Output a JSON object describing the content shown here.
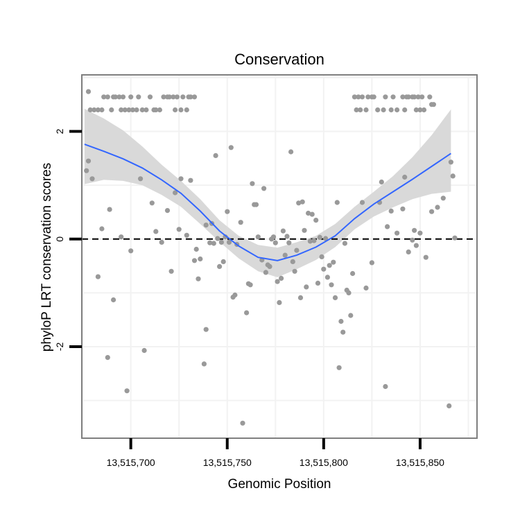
{
  "chart_data": {
    "type": "scatter",
    "title": "Conservation",
    "xlabel": "Genomic Position",
    "ylabel": "phyloP LRT conservation scores",
    "xlim": [
      13515674.6,
      13515879.5
    ],
    "ylim": [
      -3.7,
      3.05
    ],
    "x_ticks": [
      13515700,
      13515750,
      13515800,
      13515850
    ],
    "x_tick_labels": [
      "13,515,700",
      "13,515,750",
      "13,515,800",
      "13,515,850"
    ],
    "y_ticks": [
      -2,
      0,
      2
    ],
    "y_tick_labels": [
      "-2",
      "0",
      "2"
    ],
    "reference_line": {
      "y": 0,
      "style": "dashed"
    },
    "grid": true,
    "legend": "none",
    "colors": {
      "points": "#999999",
      "smooth_line": "#3366ff",
      "ribbon": "#d9d9d9",
      "panel_border": "#7f7f7f",
      "grid": "#f2f2f2",
      "reference_line": "#000000"
    },
    "points": [
      {
        "x": 13515678,
        "y": 2.74
      },
      {
        "x": 13515679,
        "y": 2.4
      },
      {
        "x": 13515681,
        "y": 2.4
      },
      {
        "x": 13515683,
        "y": 2.4
      },
      {
        "x": 13515685,
        "y": 2.4
      },
      {
        "x": 13515686,
        "y": 2.64
      },
      {
        "x": 13515688,
        "y": 2.64
      },
      {
        "x": 13515690,
        "y": 2.4
      },
      {
        "x": 13515691,
        "y": 2.64
      },
      {
        "x": 13515692,
        "y": 2.64
      },
      {
        "x": 13515694,
        "y": 2.64
      },
      {
        "x": 13515695,
        "y": 2.4
      },
      {
        "x": 13515696,
        "y": 2.64
      },
      {
        "x": 13515697,
        "y": 2.4
      },
      {
        "x": 13515699,
        "y": 2.4
      },
      {
        "x": 13515700,
        "y": 2.64
      },
      {
        "x": 13515701,
        "y": 2.4
      },
      {
        "x": 13515703,
        "y": 2.4
      },
      {
        "x": 13515704,
        "y": 2.64
      },
      {
        "x": 13515706,
        "y": 2.4
      },
      {
        "x": 13515708,
        "y": 2.4
      },
      {
        "x": 13515710,
        "y": 2.64
      },
      {
        "x": 13515712,
        "y": 2.4
      },
      {
        "x": 13515713,
        "y": 2.4
      },
      {
        "x": 13515715,
        "y": 2.4
      },
      {
        "x": 13515717,
        "y": 2.64
      },
      {
        "x": 13515719,
        "y": 2.64
      },
      {
        "x": 13515720,
        "y": 2.64
      },
      {
        "x": 13515722,
        "y": 2.64
      },
      {
        "x": 13515723,
        "y": 2.4
      },
      {
        "x": 13515724,
        "y": 2.64
      },
      {
        "x": 13515726,
        "y": 2.4
      },
      {
        "x": 13515727,
        "y": 2.64
      },
      {
        "x": 13515729,
        "y": 2.4
      },
      {
        "x": 13515730,
        "y": 2.64
      },
      {
        "x": 13515731,
        "y": 2.64
      },
      {
        "x": 13515733,
        "y": 2.64
      },
      {
        "x": 13515816,
        "y": 2.64
      },
      {
        "x": 13515817,
        "y": 2.4
      },
      {
        "x": 13515818,
        "y": 2.64
      },
      {
        "x": 13515819,
        "y": 2.4
      },
      {
        "x": 13515820,
        "y": 2.64
      },
      {
        "x": 13515822,
        "y": 2.4
      },
      {
        "x": 13515823,
        "y": 2.64
      },
      {
        "x": 13515825,
        "y": 2.64
      },
      {
        "x": 13515826,
        "y": 2.64
      },
      {
        "x": 13515828,
        "y": 2.4
      },
      {
        "x": 13515831,
        "y": 2.4
      },
      {
        "x": 13515832,
        "y": 2.64
      },
      {
        "x": 13515835,
        "y": 2.4
      },
      {
        "x": 13515836,
        "y": 2.64
      },
      {
        "x": 13515838,
        "y": 2.4
      },
      {
        "x": 13515841,
        "y": 2.64
      },
      {
        "x": 13515842,
        "y": 2.4
      },
      {
        "x": 13515843,
        "y": 2.64
      },
      {
        "x": 13515844,
        "y": 2.64
      },
      {
        "x": 13515846,
        "y": 2.64
      },
      {
        "x": 13515847,
        "y": 2.64
      },
      {
        "x": 13515848,
        "y": 2.4
      },
      {
        "x": 13515849,
        "y": 2.64
      },
      {
        "x": 13515850,
        "y": 2.4
      },
      {
        "x": 13515851,
        "y": 2.64
      },
      {
        "x": 13515852,
        "y": 2.4
      },
      {
        "x": 13515855,
        "y": 2.64
      },
      {
        "x": 13515856,
        "y": 2.5
      },
      {
        "x": 13515857,
        "y": 2.5
      },
      {
        "x": 13515677,
        "y": 1.27
      },
      {
        "x": 13515678,
        "y": 1.45
      },
      {
        "x": 13515680,
        "y": 1.12
      },
      {
        "x": 13515683,
        "y": -0.7
      },
      {
        "x": 13515685,
        "y": 0.19
      },
      {
        "x": 13515688,
        "y": -2.2
      },
      {
        "x": 13515689,
        "y": 0.55
      },
      {
        "x": 13515691,
        "y": -1.13
      },
      {
        "x": 13515695,
        "y": 0.04
      },
      {
        "x": 13515698,
        "y": -2.82
      },
      {
        "x": 13515700,
        "y": -0.22
      },
      {
        "x": 13515705,
        "y": 1.12
      },
      {
        "x": 13515707,
        "y": -2.07
      },
      {
        "x": 13515711,
        "y": 0.67
      },
      {
        "x": 13515713,
        "y": 0.14
      },
      {
        "x": 13515716,
        "y": -0.06
      },
      {
        "x": 13515719,
        "y": 0.53
      },
      {
        "x": 13515721,
        "y": -0.6
      },
      {
        "x": 13515723,
        "y": 0.86
      },
      {
        "x": 13515725,
        "y": 0.18
      },
      {
        "x": 13515726,
        "y": 1.12
      },
      {
        "x": 13515729,
        "y": 0.07
      },
      {
        "x": 13515731,
        "y": 1.09
      },
      {
        "x": 13515733,
        "y": -0.4
      },
      {
        "x": 13515734,
        "y": -0.19
      },
      {
        "x": 13515735,
        "y": -0.74
      },
      {
        "x": 13515736,
        "y": -0.37
      },
      {
        "x": 13515738,
        "y": -2.32
      },
      {
        "x": 13515739,
        "y": -1.68
      },
      {
        "x": 13515739,
        "y": 0.26
      },
      {
        "x": 13515741,
        "y": -0.07
      },
      {
        "x": 13515742,
        "y": 0.29
      },
      {
        "x": 13515743,
        "y": -0.08
      },
      {
        "x": 13515744,
        "y": 1.55
      },
      {
        "x": 13515745,
        "y": 0.01
      },
      {
        "x": 13515746,
        "y": -0.51
      },
      {
        "x": 13515747,
        "y": -0.06
      },
      {
        "x": 13515748,
        "y": -0.42
      },
      {
        "x": 13515749,
        "y": 0.04
      },
      {
        "x": 13515750,
        "y": 0.51
      },
      {
        "x": 13515751,
        "y": -0.06
      },
      {
        "x": 13515752,
        "y": 1.7
      },
      {
        "x": 13515753,
        "y": -1.08
      },
      {
        "x": 13515754,
        "y": -1.04
      },
      {
        "x": 13515755,
        "y": -0.1
      },
      {
        "x": 13515757,
        "y": 0.31
      },
      {
        "x": 13515758,
        "y": -3.42
      },
      {
        "x": 13515760,
        "y": -1.37
      },
      {
        "x": 13515761,
        "y": -0.83
      },
      {
        "x": 13515762,
        "y": -0.85
      },
      {
        "x": 13515763,
        "y": 1.03
      },
      {
        "x": 13515764,
        "y": 0.64
      },
      {
        "x": 13515765,
        "y": 0.64
      },
      {
        "x": 13515766,
        "y": 0.04
      },
      {
        "x": 13515768,
        "y": -0.39
      },
      {
        "x": 13515769,
        "y": 0.94
      },
      {
        "x": 13515770,
        "y": -0.62
      },
      {
        "x": 13515771,
        "y": -0.48
      },
      {
        "x": 13515772,
        "y": -0.51
      },
      {
        "x": 13515773,
        "y": 0.0
      },
      {
        "x": 13515774,
        "y": 0.04
      },
      {
        "x": 13515775,
        "y": -0.07
      },
      {
        "x": 13515776,
        "y": -0.79
      },
      {
        "x": 13515777,
        "y": -1.18
      },
      {
        "x": 13515778,
        "y": -0.73
      },
      {
        "x": 13515779,
        "y": 0.15
      },
      {
        "x": 13515780,
        "y": -0.3
      },
      {
        "x": 13515781,
        "y": 0.05
      },
      {
        "x": 13515782,
        "y": -0.07
      },
      {
        "x": 13515783,
        "y": 1.62
      },
      {
        "x": 13515784,
        "y": -0.42
      },
      {
        "x": 13515785,
        "y": -0.6
      },
      {
        "x": 13515786,
        "y": -0.21
      },
      {
        "x": 13515787,
        "y": 0.67
      },
      {
        "x": 13515788,
        "y": -1.09
      },
      {
        "x": 13515789,
        "y": 0.69
      },
      {
        "x": 13515790,
        "y": 0.16
      },
      {
        "x": 13515791,
        "y": -0.89
      },
      {
        "x": 13515792,
        "y": 0.48
      },
      {
        "x": 13515793,
        "y": -0.04
      },
      {
        "x": 13515794,
        "y": 0.46
      },
      {
        "x": 13515795,
        "y": -0.03
      },
      {
        "x": 13515796,
        "y": 0.35
      },
      {
        "x": 13515797,
        "y": -0.82
      },
      {
        "x": 13515798,
        "y": 0.03
      },
      {
        "x": 13515799,
        "y": -0.33
      },
      {
        "x": 13515800,
        "y": -0.56
      },
      {
        "x": 13515801,
        "y": 0.01
      },
      {
        "x": 13515802,
        "y": -0.71
      },
      {
        "x": 13515803,
        "y": -0.49
      },
      {
        "x": 13515804,
        "y": -0.85
      },
      {
        "x": 13515805,
        "y": -0.43
      },
      {
        "x": 13515806,
        "y": -1.09
      },
      {
        "x": 13515807,
        "y": 0.68
      },
      {
        "x": 13515808,
        "y": -2.39
      },
      {
        "x": 13515809,
        "y": -1.53
      },
      {
        "x": 13515810,
        "y": -1.73
      },
      {
        "x": 13515811,
        "y": -0.08
      },
      {
        "x": 13515812,
        "y": -0.95
      },
      {
        "x": 13515813,
        "y": -1.0
      },
      {
        "x": 13515814,
        "y": -1.42
      },
      {
        "x": 13515815,
        "y": -0.64
      },
      {
        "x": 13515820,
        "y": 0.68
      },
      {
        "x": 13515822,
        "y": -0.91
      },
      {
        "x": 13515825,
        "y": -0.44
      },
      {
        "x": 13515829,
        "y": 0.68
      },
      {
        "x": 13515830,
        "y": 1.06
      },
      {
        "x": 13515832,
        "y": -2.74
      },
      {
        "x": 13515833,
        "y": 0.23
      },
      {
        "x": 13515835,
        "y": 0.52
      },
      {
        "x": 13515838,
        "y": 0.11
      },
      {
        "x": 13515841,
        "y": 0.56
      },
      {
        "x": 13515842,
        "y": 1.15
      },
      {
        "x": 13515844,
        "y": -0.24
      },
      {
        "x": 13515846,
        "y": -0.02
      },
      {
        "x": 13515847,
        "y": 0.16
      },
      {
        "x": 13515848,
        "y": -0.12
      },
      {
        "x": 13515850,
        "y": 0.11
      },
      {
        "x": 13515853,
        "y": -0.34
      },
      {
        "x": 13515856,
        "y": 0.51
      },
      {
        "x": 13515859,
        "y": 0.59
      },
      {
        "x": 13515862,
        "y": 0.76
      },
      {
        "x": 13515865,
        "y": -3.1
      },
      {
        "x": 13515866,
        "y": 1.43
      },
      {
        "x": 13515867,
        "y": 1.17
      },
      {
        "x": 13515868,
        "y": 0.02
      }
    ],
    "smooth": {
      "x": [
        13515676,
        13515686,
        13515696,
        13515706,
        13515716,
        13515726,
        13515736,
        13515746,
        13515756,
        13515766,
        13515776,
        13515786,
        13515796,
        13515806,
        13515816,
        13515826,
        13515836,
        13515846,
        13515856,
        13515866
      ],
      "y": [
        1.76,
        1.63,
        1.49,
        1.32,
        1.1,
        0.85,
        0.52,
        0.15,
        -0.13,
        -0.34,
        -0.4,
        -0.3,
        -0.15,
        0.06,
        0.38,
        0.65,
        0.88,
        1.11,
        1.35,
        1.59
      ],
      "lower": [
        1.02,
        1.1,
        1.08,
        1.0,
        0.82,
        0.6,
        0.28,
        -0.05,
        -0.36,
        -0.6,
        -0.71,
        -0.56,
        -0.39,
        -0.15,
        0.18,
        0.42,
        0.59,
        0.74,
        0.84,
        0.88
      ],
      "upper": [
        2.42,
        2.24,
        2.02,
        1.72,
        1.38,
        1.08,
        0.74,
        0.35,
        0.06,
        -0.11,
        -0.16,
        -0.06,
        0.06,
        0.28,
        0.6,
        0.88,
        1.17,
        1.52,
        1.93,
        2.41
      ]
    }
  }
}
